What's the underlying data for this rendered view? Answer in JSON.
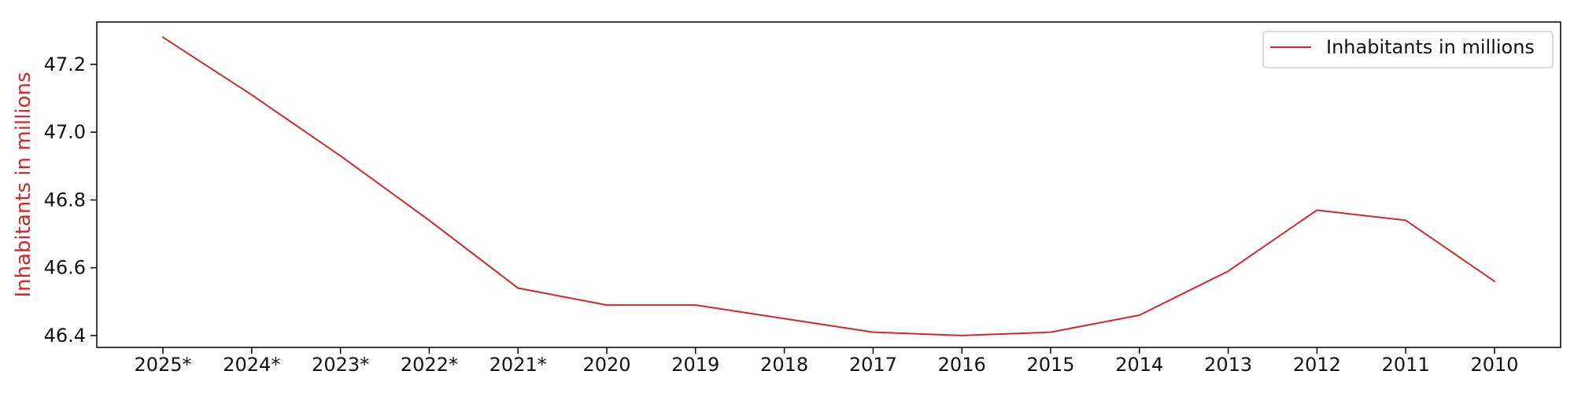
{
  "chart_data": {
    "type": "line",
    "categories": [
      "2025*",
      "2024*",
      "2023*",
      "2022*",
      "2021*",
      "2020",
      "2019",
      "2018",
      "2017",
      "2016",
      "2015",
      "2014",
      "2013",
      "2012",
      "2011",
      "2010"
    ],
    "series": [
      {
        "name": "Inhabitants in millions",
        "values": [
          47.28,
          47.11,
          46.93,
          46.74,
          46.54,
          46.49,
          46.49,
          46.45,
          46.41,
          46.4,
          46.41,
          46.46,
          46.59,
          46.77,
          46.74,
          46.56
        ],
        "color": "#d62728"
      }
    ],
    "xlabel": "",
    "ylabel": "Inhabitants in millions",
    "ylabel_color": "#d62728",
    "ylim": [
      46.365,
      47.325
    ],
    "yticks": [
      46.4,
      46.6,
      46.8,
      47.0,
      47.2
    ],
    "ytick_labels": [
      "46.4",
      "46.6",
      "46.8",
      "47.0",
      "47.2"
    ],
    "grid": false,
    "legend_position": "top-right"
  }
}
